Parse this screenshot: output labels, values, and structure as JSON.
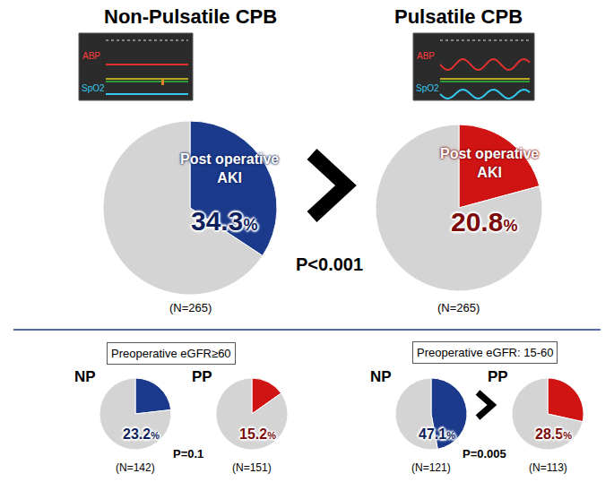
{
  "chart_data": [
    {
      "type": "pie",
      "title": "Non-Pulsatile CPB",
      "subtitle": "(N=265)",
      "categories": [
        "Post operative AKI",
        null
      ],
      "values": [
        34.3,
        65.7
      ],
      "value_labels": [
        "34.3%",
        null
      ],
      "colors": [
        "#1b3a8c",
        "#d4d4d4"
      ],
      "data_labels": true,
      "panel_labels": [
        "ABP",
        "SpO2"
      ]
    },
    {
      "type": "pie",
      "title": "Pulsatile CPB",
      "subtitle": "(N=265)",
      "categories": [
        "Post operative AKI",
        null
      ],
      "values": [
        20.8,
        79.2
      ],
      "value_labels": [
        "20.8%",
        null
      ],
      "colors": [
        "#d01414",
        "#d4d4d4"
      ],
      "data_labels": true,
      "panel_labels": [
        "ABP",
        "SpO2"
      ]
    },
    {
      "type": "pie",
      "title": "NP",
      "subtitle": "(N=142)",
      "categories": [
        null,
        null
      ],
      "values": [
        23.2,
        76.8
      ],
      "value_labels": [
        "23.2%",
        null
      ],
      "colors": [
        "#1b3a8c",
        "#d4d4d4"
      ],
      "data_labels": true
    },
    {
      "type": "pie",
      "title": "PP",
      "subtitle": "(N=151)",
      "categories": [
        null,
        null
      ],
      "values": [
        15.2,
        84.8
      ],
      "value_labels": [
        "15.2%",
        null
      ],
      "colors": [
        "#d01414",
        "#d4d4d4"
      ],
      "data_labels": true
    },
    {
      "type": "pie",
      "title": "NP",
      "subtitle": "(N=121)",
      "categories": [
        null,
        null
      ],
      "values": [
        47.1,
        52.9
      ],
      "value_labels": [
        "47.1%",
        null
      ],
      "colors": [
        "#1b3a8c",
        "#d4d4d4"
      ],
      "data_labels": true
    },
    {
      "type": "pie",
      "title": "PP",
      "subtitle": "(N=113)",
      "categories": [
        null,
        null
      ],
      "values": [
        28.5,
        71.5
      ],
      "value_labels": [
        "28.5%",
        null
      ],
      "colors": [
        "#d01414",
        "#d4d4d4"
      ],
      "data_labels": true
    }
  ],
  "comparisons": [
    {
      "p_text": "P<0.001"
    },
    {
      "header": "Preoperative eGFR≥60",
      "p_text": "P=0.1"
    },
    {
      "header": "Preoperative eGFR: 15-60",
      "p_text": "P=0.005"
    }
  ]
}
